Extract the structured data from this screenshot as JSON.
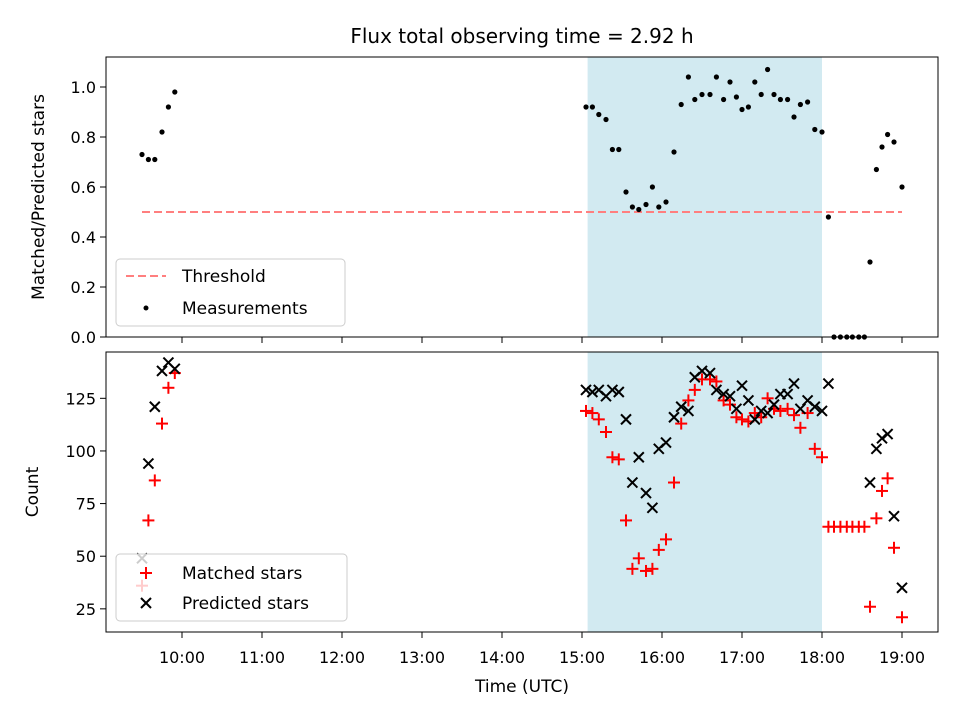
{
  "chart_data": {
    "title": "Flux total observing time = 2.92 h",
    "xlabel": "Time (UTC)",
    "x_ticks": [
      "10:00",
      "11:00",
      "12:00",
      "13:00",
      "14:00",
      "15:00",
      "16:00",
      "17:00",
      "18:00",
      "19:00"
    ],
    "x_tick_hours": [
      10,
      11,
      12,
      13,
      14,
      15,
      16,
      17,
      18,
      19
    ],
    "xlim_hours": [
      9.05,
      19.45
    ],
    "span_hours": [
      15.07,
      18.0
    ],
    "span_color": "#add8e6",
    "panels": [
      {
        "type": "scatter",
        "ylabel": "Matched/Predicted stars",
        "ylim": [
          0,
          1.12
        ],
        "y_ticks": [
          0.0,
          0.2,
          0.4,
          0.6,
          0.8,
          1.0
        ],
        "y_tick_labels": [
          "0.0",
          "0.2",
          "0.4",
          "0.6",
          "0.8",
          "1.0"
        ],
        "legend_position": "lower-left",
        "threshold": {
          "name": "Threshold",
          "value": 0.5,
          "x_range": [
            9.5,
            19.0
          ],
          "color": "#ff7f7f"
        },
        "series": [
          {
            "name": "Measurements",
            "color": "#000000",
            "points": [
              [
                9.5,
                0.73
              ],
              [
                9.58,
                0.71
              ],
              [
                9.66,
                0.71
              ],
              [
                9.75,
                0.82
              ],
              [
                9.83,
                0.92
              ],
              [
                9.91,
                0.98
              ],
              [
                15.05,
                0.92
              ],
              [
                15.13,
                0.92
              ],
              [
                15.21,
                0.89
              ],
              [
                15.3,
                0.87
              ],
              [
                15.38,
                0.75
              ],
              [
                15.46,
                0.75
              ],
              [
                15.55,
                0.58
              ],
              [
                15.63,
                0.52
              ],
              [
                15.71,
                0.51
              ],
              [
                15.8,
                0.53
              ],
              [
                15.88,
                0.6
              ],
              [
                15.96,
                0.52
              ],
              [
                16.05,
                0.54
              ],
              [
                16.15,
                0.74
              ],
              [
                16.24,
                0.93
              ],
              [
                16.33,
                1.04
              ],
              [
                16.41,
                0.95
              ],
              [
                16.5,
                0.97
              ],
              [
                16.6,
                0.97
              ],
              [
                16.68,
                1.04
              ],
              [
                16.77,
                0.95
              ],
              [
                16.85,
                1.02
              ],
              [
                16.93,
                0.96
              ],
              [
                17.0,
                0.91
              ],
              [
                17.08,
                0.92
              ],
              [
                17.16,
                1.02
              ],
              [
                17.24,
                0.97
              ],
              [
                17.32,
                1.07
              ],
              [
                17.4,
                0.97
              ],
              [
                17.48,
                0.95
              ],
              [
                17.57,
                0.95
              ],
              [
                17.65,
                0.88
              ],
              [
                17.73,
                0.93
              ],
              [
                17.82,
                0.94
              ],
              [
                17.91,
                0.83
              ],
              [
                18.0,
                0.82
              ],
              [
                18.08,
                0.48
              ],
              [
                18.15,
                0.0
              ],
              [
                18.23,
                0.0
              ],
              [
                18.31,
                0.0
              ],
              [
                18.38,
                0.0
              ],
              [
                18.46,
                0.0
              ],
              [
                18.53,
                0.0
              ],
              [
                18.6,
                0.3
              ],
              [
                18.68,
                0.67
              ],
              [
                18.75,
                0.76
              ],
              [
                18.82,
                0.81
              ],
              [
                18.9,
                0.78
              ],
              [
                19.0,
                0.6
              ]
            ]
          }
        ]
      },
      {
        "type": "scatter",
        "ylabel": "Count",
        "ylim": [
          14,
          147
        ],
        "y_ticks": [
          25,
          50,
          75,
          100,
          125
        ],
        "y_tick_labels": [
          "25",
          "50",
          "75",
          "100",
          "125"
        ],
        "legend_position": "lower-left",
        "series": [
          {
            "name": "Matched stars",
            "marker": "plus",
            "color": "#ff0000",
            "points": [
              [
                9.5,
                36
              ],
              [
                9.58,
                67
              ],
              [
                9.66,
                86
              ],
              [
                9.75,
                113
              ],
              [
                9.83,
                130
              ],
              [
                9.91,
                137
              ],
              [
                15.05,
                119
              ],
              [
                15.13,
                118
              ],
              [
                15.21,
                115
              ],
              [
                15.3,
                109
              ],
              [
                15.38,
                97
              ],
              [
                15.46,
                96
              ],
              [
                15.55,
                67
              ],
              [
                15.63,
                44
              ],
              [
                15.71,
                49
              ],
              [
                15.8,
                43
              ],
              [
                15.88,
                44
              ],
              [
                15.96,
                53
              ],
              [
                16.05,
                58
              ],
              [
                16.15,
                85
              ],
              [
                16.24,
                113
              ],
              [
                16.33,
                124
              ],
              [
                16.41,
                129
              ],
              [
                16.5,
                134
              ],
              [
                16.6,
                134
              ],
              [
                16.68,
                133
              ],
              [
                16.77,
                124
              ],
              [
                16.85,
                122
              ],
              [
                16.93,
                116
              ],
              [
                17.0,
                115
              ],
              [
                17.08,
                114
              ],
              [
                17.16,
                118
              ],
              [
                17.24,
                116
              ],
              [
                17.32,
                125
              ],
              [
                17.4,
                120
              ],
              [
                17.48,
                119
              ],
              [
                17.57,
                120
              ],
              [
                17.65,
                117
              ],
              [
                17.73,
                111
              ],
              [
                17.82,
                118
              ],
              [
                17.91,
                101
              ],
              [
                18.0,
                97
              ],
              [
                18.08,
                64
              ],
              [
                18.15,
                64
              ],
              [
                18.23,
                64
              ],
              [
                18.31,
                64
              ],
              [
                18.38,
                64
              ],
              [
                18.46,
                64
              ],
              [
                18.53,
                64
              ],
              [
                18.6,
                26
              ],
              [
                18.68,
                68
              ],
              [
                18.75,
                81
              ],
              [
                18.82,
                87
              ],
              [
                18.9,
                54
              ],
              [
                19.0,
                21
              ]
            ]
          },
          {
            "name": "Predicted stars",
            "marker": "x",
            "color": "#000000",
            "points": [
              [
                9.5,
                49
              ],
              [
                9.58,
                94
              ],
              [
                9.66,
                121
              ],
              [
                9.75,
                138
              ],
              [
                9.83,
                142
              ],
              [
                9.91,
                139
              ],
              [
                15.05,
                129
              ],
              [
                15.13,
                128
              ],
              [
                15.21,
                129
              ],
              [
                15.3,
                126
              ],
              [
                15.38,
                129
              ],
              [
                15.46,
                128
              ],
              [
                15.55,
                115
              ],
              [
                15.63,
                85
              ],
              [
                15.71,
                97
              ],
              [
                15.8,
                80
              ],
              [
                15.88,
                73
              ],
              [
                15.96,
                101
              ],
              [
                16.05,
                104
              ],
              [
                16.15,
                116
              ],
              [
                16.24,
                121
              ],
              [
                16.33,
                119
              ],
              [
                16.41,
                135
              ],
              [
                16.5,
                138
              ],
              [
                16.6,
                137
              ],
              [
                16.68,
                129
              ],
              [
                16.77,
                127
              ],
              [
                16.85,
                126
              ],
              [
                16.93,
                120
              ],
              [
                17.0,
                131
              ],
              [
                17.08,
                124
              ],
              [
                17.16,
                115
              ],
              [
                17.24,
                119
              ],
              [
                17.32,
                118
              ],
              [
                17.4,
                122
              ],
              [
                17.48,
                127
              ],
              [
                17.57,
                127
              ],
              [
                17.65,
                132
              ],
              [
                17.73,
                120
              ],
              [
                17.82,
                124
              ],
              [
                17.91,
                121
              ],
              [
                18.0,
                119
              ],
              [
                18.08,
                132
              ],
              [
                18.6,
                85
              ],
              [
                18.68,
                101
              ],
              [
                18.75,
                106
              ],
              [
                18.82,
                108
              ],
              [
                18.9,
                69
              ],
              [
                19.0,
                35
              ]
            ]
          }
        ]
      }
    ]
  }
}
